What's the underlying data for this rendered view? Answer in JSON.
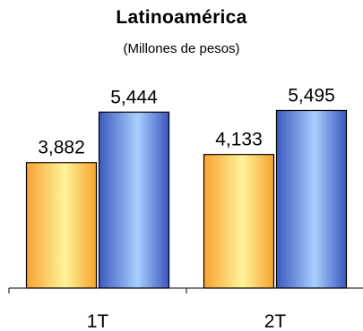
{
  "chart_data": {
    "type": "bar",
    "title": "Latinoamérica",
    "subtitle": "(Millones de pesos)",
    "categories": [
      "1T",
      "2T"
    ],
    "series": [
      {
        "values": [
          3882,
          4133
        ],
        "labels": [
          "3,882",
          "4,133"
        ],
        "color": "#f5a623"
      },
      {
        "values": [
          5444,
          5495
        ],
        "labels": [
          "5,444",
          "5,495"
        ],
        "color": "#3f61c4"
      }
    ],
    "ylim": [
      0,
      6200
    ],
    "grid": false,
    "legend": "none"
  }
}
